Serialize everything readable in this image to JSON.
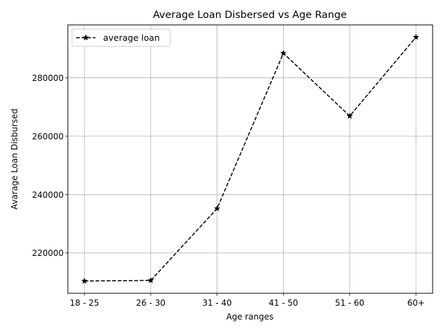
{
  "chart_data": {
    "type": "line",
    "title": "Average Loan Disbersed vs Age Range",
    "xlabel": "Age ranges",
    "ylabel": "Avarage Loan Disbursed",
    "categories": [
      "18 - 25",
      "26 - 30",
      "31 - 40",
      "41 - 50",
      "51 - 60",
      "60+"
    ],
    "series": [
      {
        "name": "average loan",
        "values": [
          210400,
          210600,
          235200,
          288400,
          266900,
          293900
        ],
        "color": "#000000",
        "line_style": "dashed",
        "marker": "star"
      }
    ],
    "yticks": [
      220000,
      240000,
      260000,
      280000
    ],
    "ytick_labels": [
      "220000",
      "240000",
      "260000",
      "280000"
    ],
    "ylim": [
      206200,
      298100
    ],
    "grid": true,
    "legend_position": "upper-left"
  }
}
